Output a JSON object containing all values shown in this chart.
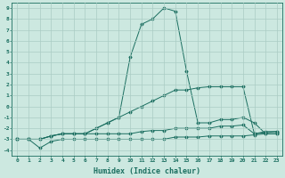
{
  "xlabel": "Humidex (Indice chaleur)",
  "bg_color": "#cce8e0",
  "grid_color": "#aaccC4",
  "line_color": "#1a6e60",
  "xlim": [
    -0.5,
    23.5
  ],
  "ylim": [
    -4.5,
    9.5
  ],
  "xticks": [
    0,
    1,
    2,
    3,
    4,
    5,
    6,
    7,
    8,
    9,
    10,
    11,
    12,
    13,
    14,
    15,
    16,
    17,
    18,
    19,
    20,
    21,
    22,
    23
  ],
  "yticks": [
    -4,
    -3,
    -2,
    -1,
    0,
    1,
    2,
    3,
    4,
    5,
    6,
    7,
    8,
    9
  ],
  "series": [
    {
      "x": [
        0,
        1,
        2,
        3,
        4,
        5,
        6,
        7,
        8,
        9,
        10,
        11,
        12,
        13,
        14,
        15,
        16,
        17,
        18,
        19,
        20,
        21,
        22,
        23
      ],
      "y": [
        -3,
        -3,
        -3.8,
        -3.2,
        -3,
        -3,
        -3,
        -3,
        -3,
        -3,
        -3,
        -3,
        -3,
        -3,
        -2.8,
        -2.8,
        -2.8,
        -2.7,
        -2.7,
        -2.7,
        -2.7,
        -2.6,
        -2.5,
        -2.5
      ]
    },
    {
      "x": [
        0,
        1,
        2,
        3,
        4,
        5,
        6,
        7,
        8,
        9,
        10,
        11,
        12,
        13,
        14,
        15,
        16,
        17,
        18,
        19,
        20,
        21,
        22,
        23
      ],
      "y": [
        -3,
        -3,
        -3,
        -2.7,
        -2.5,
        -2.5,
        -2.5,
        -2.5,
        -2.5,
        -2.5,
        -2.5,
        -2.3,
        -2.2,
        -2.2,
        -2,
        -2,
        -2,
        -2,
        -1.8,
        -1.8,
        -1.7,
        -2.5,
        -2.4,
        -2.3
      ]
    },
    {
      "x": [
        0,
        1,
        2,
        3,
        4,
        5,
        6,
        7,
        8,
        9,
        10,
        11,
        12,
        13,
        14,
        15,
        16,
        17,
        18,
        19,
        20,
        21,
        22,
        23
      ],
      "y": [
        -3,
        -3,
        -3,
        -2.7,
        -2.5,
        -2.5,
        -2.5,
        -2,
        -1.5,
        -1,
        4.5,
        7.5,
        8,
        9,
        8.7,
        3.2,
        -1.5,
        -1.5,
        -1.2,
        -1.2,
        -1,
        -1.5,
        -2.5,
        -2.5
      ]
    },
    {
      "x": [
        0,
        1,
        2,
        3,
        4,
        5,
        6,
        7,
        8,
        9,
        10,
        11,
        12,
        13,
        14,
        15,
        16,
        17,
        18,
        19,
        20,
        21,
        22,
        23
      ],
      "y": [
        -3,
        -3,
        -3,
        -2.7,
        -2.5,
        -2.5,
        -2.5,
        -2,
        -1.5,
        -1,
        -0.5,
        0,
        0.5,
        1,
        1.5,
        1.5,
        1.7,
        1.8,
        1.8,
        1.8,
        1.8,
        -2.5,
        -2.3,
        -2.3
      ]
    }
  ]
}
